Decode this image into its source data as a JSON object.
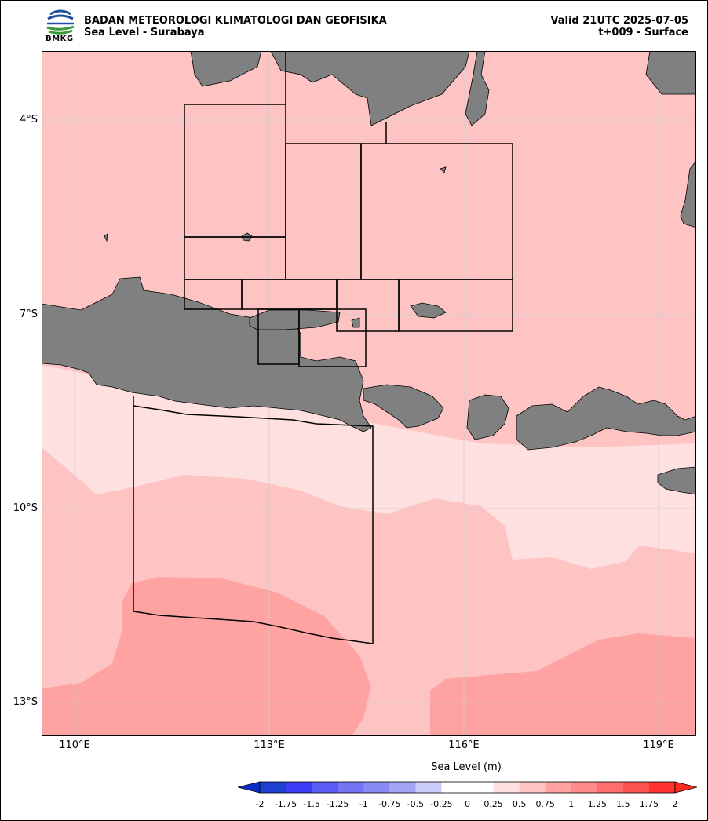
{
  "header": {
    "logo_text": "BMKG",
    "agency": "BADAN METEOROLOGI KLIMATOLOGI DAN GEOFISIKA",
    "product": "Sea Level - Surabaya",
    "valid": "Valid 21UTC 2025-07-05",
    "lead": "t+009 - Surface"
  },
  "map": {
    "lat_labels": [
      "4°S",
      "7°S",
      "10°S",
      "13°S"
    ],
    "lon_labels": [
      "110°E",
      "113°E",
      "116°E",
      "119°E"
    ],
    "colors": {
      "land": "#808080",
      "sea_0_25_0_5": "#fde0df",
      "sea_0_5_0_75": "#fec4c4",
      "sea_0_75_1": "#fea3a2",
      "grid": "#cccccc"
    }
  },
  "colorbar": {
    "label": "Sea Level (m)",
    "ticks": [
      "-2",
      "-1.75",
      "-1.5",
      "-1.25",
      "-1",
      "-0.75",
      "-0.5",
      "-0.25",
      "0",
      "0.25",
      "0.5",
      "0.75",
      "1",
      "1.25",
      "1.5",
      "1.75",
      "2"
    ],
    "colors": [
      "#1f3fd0",
      "#3c3cf5",
      "#5a5af5",
      "#7474f5",
      "#8a8af5",
      "#a4a4f5",
      "#cbcbf7",
      "#ffffff",
      "#ffffff",
      "#fde0df",
      "#fec4c4",
      "#fea3a2",
      "#fe8b89",
      "#fe6e6c",
      "#fe5250",
      "#fe3230"
    ]
  }
}
